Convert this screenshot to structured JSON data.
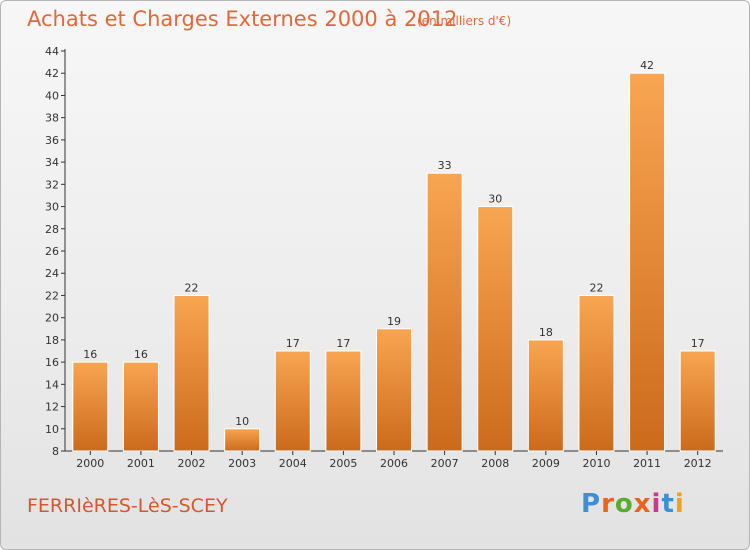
{
  "header": {
    "title": "Achats et Charges Externes 2000 à 2012",
    "subtitle": "(en milliers d'€)"
  },
  "footer": {
    "commune": "FERRIèRES-LèS-SCEY",
    "logo": "Proxiti",
    "logo_colors": [
      "#3c8fd6",
      "#e8641b",
      "#5aab2f",
      "#e8641b",
      "#c93a8c",
      "#3c8fd6",
      "#f0a020"
    ]
  },
  "colors": {
    "bar_light": "#f8a551",
    "bar_dark": "#cc6a1c",
    "axis": "#333333",
    "text": "#333333"
  },
  "chart_data": {
    "type": "bar",
    "categories": [
      "2000",
      "2001",
      "2002",
      "2003",
      "2004",
      "2005",
      "2006",
      "2007",
      "2008",
      "2009",
      "2010",
      "2011",
      "2012"
    ],
    "values": [
      16,
      16,
      22,
      10,
      17,
      17,
      19,
      33,
      30,
      18,
      22,
      42,
      17
    ],
    "title": "Achats et Charges Externes 2000 à 2012",
    "subtitle": "(en milliers d'€)",
    "ylim": [
      8,
      44
    ],
    "ytick_step": 2,
    "grid": false,
    "data_labels": true
  }
}
